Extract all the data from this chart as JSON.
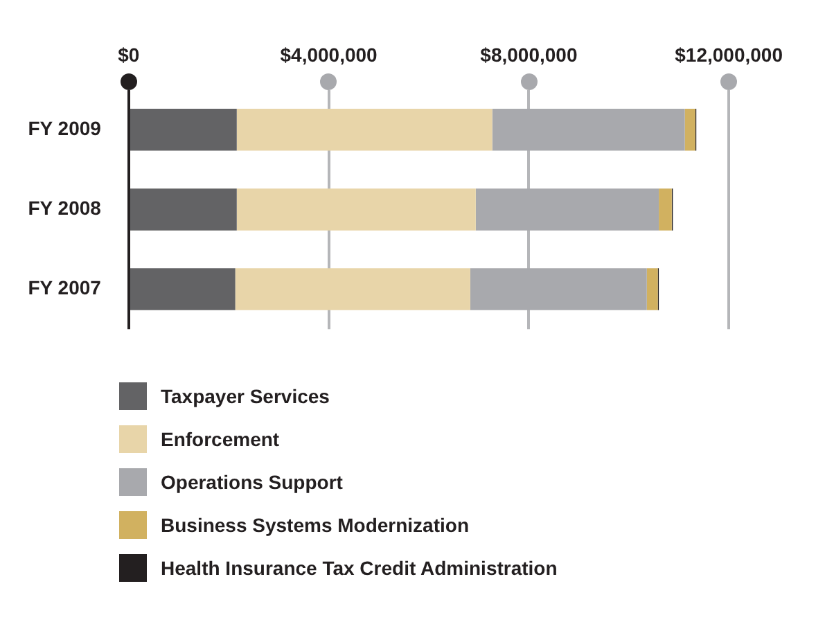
{
  "chart_data": {
    "type": "bar",
    "orientation": "horizontal",
    "stacked": true,
    "categories": [
      "FY 2009",
      "FY 2008",
      "FY 2007"
    ],
    "series": [
      {
        "name": "Taxpayer Services",
        "color": "#636365",
        "values": [
          2160000,
          2160000,
          2130000
        ]
      },
      {
        "name": "Enforcement",
        "color": "#e8d5a9",
        "values": [
          5110000,
          4780000,
          4700000
        ]
      },
      {
        "name": "Operations Support",
        "color": "#a8a9ad",
        "values": [
          3850000,
          3660000,
          3530000
        ]
      },
      {
        "name": "Business Systems Modernization",
        "color": "#d1b160",
        "values": [
          210000,
          260000,
          220000
        ]
      },
      {
        "name": "Health Insurance Tax Credit Administration",
        "color": "#231f20",
        "values": [
          20000,
          20000,
          20000
        ]
      }
    ],
    "xlim": [
      0,
      12000000
    ],
    "xticks": [
      {
        "value": 0,
        "label": "$0"
      },
      {
        "value": 4000000,
        "label": "$4,000,000"
      },
      {
        "value": 8000000,
        "label": "$8,000,000"
      },
      {
        "value": 12000000,
        "label": "$12,000,000"
      }
    ],
    "grid": "x",
    "legend": "bottom"
  }
}
